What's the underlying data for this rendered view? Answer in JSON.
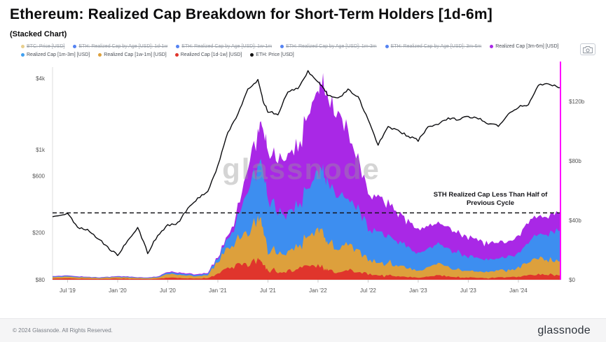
{
  "header": {
    "title": "Ethereum: Realized Cap Breakdown for Short-Term Holders [1d-6m]",
    "subtitle": "(Stacked Chart)"
  },
  "legend": {
    "rows": [
      [
        {
          "label": "BTC: Price [USD]",
          "color": "#e8cf8e",
          "disabled": true
        },
        {
          "label": "ETH: Realized Cap by Age [USD]: 1d-1w",
          "color": "#5583f2",
          "disabled": true
        },
        {
          "label": "ETH: Realized Cap by Age [USD]: 1w-1m",
          "color": "#5583f2",
          "disabled": true
        },
        {
          "label": "ETH: Realized Cap by Age [USD]: 1m-3m",
          "color": "#5583f2",
          "disabled": true
        },
        {
          "label": "ETH: Realized Cap by Age [USD]: 3m-6m",
          "color": "#5583f2",
          "disabled": true
        },
        {
          "label": "Realized Cap [3m-6m] [USD]",
          "color": "#a928e6",
          "disabled": false
        }
      ],
      [
        {
          "label": "Realized Cap [1m-3m] [USD]",
          "color": "#41a0f0",
          "disabled": false
        },
        {
          "label": "Realized Cap [1w-1m] [USD]",
          "color": "#dda03c",
          "disabled": false
        },
        {
          "label": "Realized Cap [1d-1w] [USD]",
          "color": "#e0352c",
          "disabled": false
        },
        {
          "label": "ETH: Price [USD]",
          "color": "#111111",
          "disabled": false
        }
      ]
    ]
  },
  "footer": {
    "copyright": "© 2024 Glassnode. All Rights Reserved.",
    "brand": "glassnode"
  },
  "chart_data": {
    "type": "area",
    "stacked": true,
    "title": "Ethereum: Realized Cap Breakdown for Short-Term Holders [1d-6m]",
    "unit": "Realized Cap values in USD billions; price in USD",
    "x_domain": [
      2019.35,
      2024.42
    ],
    "x": [
      2019.35,
      2019.5,
      2019.6,
      2019.7,
      2019.8,
      2019.9,
      2020.0,
      2020.1,
      2020.2,
      2020.3,
      2020.4,
      2020.5,
      2020.6,
      2020.7,
      2020.8,
      2020.9,
      2021.0,
      2021.1,
      2021.2,
      2021.3,
      2021.4,
      2021.45,
      2021.5,
      2021.6,
      2021.7,
      2021.8,
      2021.9,
      2022.0,
      2022.05,
      2022.1,
      2022.2,
      2022.3,
      2022.4,
      2022.5,
      2022.6,
      2022.7,
      2022.8,
      2022.9,
      2023.0,
      2023.1,
      2023.2,
      2023.3,
      2023.4,
      2023.5,
      2023.6,
      2023.7,
      2023.8,
      2023.9,
      2024.0,
      2024.1,
      2024.2,
      2024.3,
      2024.4
    ],
    "series": [
      {
        "name": "Realized Cap [1d-1w] [USD]",
        "color": "#e0352c",
        "values": [
          0.8,
          1.0,
          0.7,
          0.6,
          0.5,
          0.6,
          0.8,
          0.7,
          0.5,
          0.4,
          0.6,
          1.5,
          1.2,
          1.0,
          0.8,
          1.2,
          4,
          8,
          10,
          9,
          14,
          12,
          6,
          5,
          6,
          7,
          9,
          10,
          8,
          6,
          5,
          7,
          5,
          4,
          3,
          3,
          2.5,
          2,
          1.5,
          2,
          3,
          2,
          1.5,
          1.5,
          1.2,
          1.2,
          1.5,
          1.5,
          2,
          3,
          4,
          3,
          3
        ]
      },
      {
        "name": "Realized Cap [1w-1m] [USD]",
        "color": "#dda03c",
        "values": [
          1.0,
          1.2,
          0.9,
          0.8,
          0.7,
          0.8,
          1.0,
          0.9,
          0.7,
          0.6,
          0.9,
          2.5,
          2.0,
          1.8,
          1.5,
          2.0,
          8,
          14,
          18,
          20,
          28,
          25,
          15,
          12,
          14,
          16,
          20,
          24,
          22,
          18,
          15,
          18,
          14,
          10,
          8,
          8,
          7,
          6,
          5,
          6,
          8,
          6,
          5,
          4.5,
          4,
          4,
          4.5,
          5,
          6,
          9,
          12,
          10,
          10
        ]
      },
      {
        "name": "Realized Cap [1m-3m] [USD]",
        "color": "#3d8ef0",
        "values": [
          0.4,
          0.5,
          0.4,
          0.3,
          0.3,
          0.3,
          0.4,
          0.4,
          0.3,
          0.3,
          0.4,
          1.0,
          1.0,
          0.9,
          0.8,
          1.0,
          2.5,
          6,
          14,
          28,
          35,
          38,
          35,
          28,
          25,
          28,
          32,
          38,
          42,
          40,
          35,
          30,
          28,
          22,
          20,
          18,
          16,
          14,
          12,
          12,
          13,
          12,
          11,
          10,
          9,
          8,
          8,
          9,
          10,
          13,
          16,
          18,
          20
        ]
      },
      {
        "name": "Realized Cap [3m-6m] [USD]",
        "color": "#a928e6",
        "values": [
          0.3,
          0.3,
          0.3,
          0.2,
          0.2,
          0.2,
          0.3,
          0.3,
          0.2,
          0.2,
          0.3,
          0.5,
          0.6,
          0.6,
          0.5,
          0.6,
          1,
          2,
          6,
          16,
          22,
          28,
          34,
          35,
          38,
          40,
          48,
          55,
          58,
          56,
          55,
          45,
          33,
          24,
          24,
          21,
          19,
          18,
          16,
          15,
          14,
          14,
          13.5,
          13,
          12,
          11,
          10,
          10,
          12,
          14,
          12,
          12,
          12
        ]
      }
    ],
    "price": {
      "name": "ETH: Price [USD]",
      "color": "#0c0c0f",
      "scale": "log",
      "values": [
        270,
        290,
        220,
        210,
        180,
        150,
        130,
        170,
        220,
        135,
        190,
        230,
        240,
        320,
        390,
        450,
        730,
        1400,
        2000,
        3200,
        3900,
        2600,
        2100,
        2000,
        3100,
        3300,
        4600,
        3750,
        3300,
        2900,
        2700,
        3200,
        2800,
        1800,
        1100,
        1550,
        1450,
        1300,
        1200,
        1550,
        1650,
        1850,
        1800,
        1900,
        1850,
        1650,
        1600,
        2000,
        2300,
        2400,
        3500,
        3600,
        3400
      ]
    },
    "y_left": {
      "scale": "log",
      "unit": "USD",
      "labels": [
        "$4k",
        "$1k",
        "$600",
        "$200",
        "$80"
      ],
      "values": [
        4000,
        1000,
        600,
        200,
        80
      ]
    },
    "y_right": {
      "scale": "linear",
      "unit": "USD billions",
      "labels": [
        "$120b",
        "$80b",
        "$40b",
        "$0"
      ],
      "values": [
        120,
        80,
        40,
        0
      ]
    },
    "x_ticks": {
      "labels": [
        "Jul '19",
        "Jan '20",
        "Jul '20",
        "Jan '21",
        "Jul '21",
        "Jan '22",
        "Jul '22",
        "Jan '23",
        "Jul '23",
        "Jan '24"
      ],
      "values": [
        2019.5,
        2020.0,
        2020.5,
        2021.0,
        2021.5,
        2022.0,
        2022.5,
        2023.0,
        2023.5,
        2024.0
      ]
    },
    "threshold": {
      "value": 45,
      "unit": "USD billions",
      "style": "dashed",
      "color": "#15151a"
    },
    "annotation": {
      "lines": [
        "STH Realized Cap Less Than Half of",
        "Previous Cycle"
      ]
    },
    "cursor_line": {
      "x": 2024.42,
      "color": "#ff00ff"
    },
    "watermark": "glassnode"
  }
}
